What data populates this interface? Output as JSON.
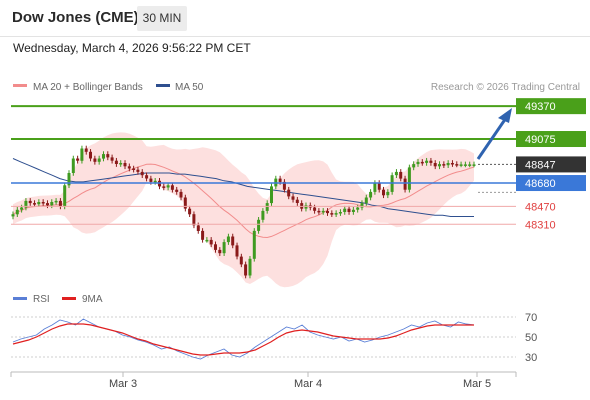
{
  "header": {
    "title": "Dow Jones (CME)",
    "timeframe": "30 MIN",
    "datetime": "Wednesday, March 4, 2026 9:56:22 PM CET"
  },
  "legend": {
    "ma20_label": "MA 20 + Bollinger Bands",
    "ma50_label": "MA 50",
    "ma20_color": "#f28c8c",
    "ma50_color": "#2e4f8f",
    "credit": "Research © 2026 Trading Central"
  },
  "rsi_legend": {
    "rsi_label": "RSI",
    "ma9_label": "9MA",
    "rsi_color": "#5a7fd6",
    "ma9_color": "#e02020"
  },
  "levels": [
    {
      "value": 49370,
      "label": "49370",
      "kind": "resistance",
      "color": "#4aa01a"
    },
    {
      "value": 49075,
      "label": "49075",
      "kind": "resistance",
      "color": "#4aa01a"
    },
    {
      "value": 48847,
      "label": "48847",
      "kind": "current",
      "color": "#333333"
    },
    {
      "value": 48680,
      "label": "48680",
      "kind": "pivot",
      "color": "#3a78d8"
    },
    {
      "value": 48470,
      "label": "48470",
      "kind": "support",
      "color": "#e04040"
    },
    {
      "value": 48310,
      "label": "48310",
      "kind": "support",
      "color": "#e04040"
    }
  ],
  "x_axis_labels": [
    "Mar 3",
    "Mar 4",
    "Mar 5"
  ],
  "rsi_axis_labels": [
    "70",
    "50",
    "30"
  ],
  "chart_data": [
    {
      "type": "candlestick",
      "title": "Dow Jones (CME)",
      "ylim": [
        47720,
        49470
      ],
      "bar_count": 108,
      "close_approx": [
        48400,
        48440,
        48460,
        48520,
        48500,
        48490,
        48510,
        48500,
        48480,
        48510,
        48520,
        48470,
        48660,
        48770,
        48900,
        48880,
        48990,
        48960,
        48900,
        48870,
        48900,
        48940,
        48910,
        48880,
        48850,
        48860,
        48830,
        48810,
        48800,
        48780,
        48750,
        48720,
        48690,
        48700,
        48650,
        48640,
        48660,
        48620,
        48600,
        48550,
        48450,
        48400,
        48300,
        48250,
        48170,
        48170,
        48130,
        48080,
        48050,
        48150,
        48200,
        48120,
        48020,
        47950,
        47850,
        48000,
        48250,
        48350,
        48430,
        48500,
        48650,
        48720,
        48690,
        48620,
        48560,
        48530,
        48500,
        48450,
        48480,
        48460,
        48430,
        48420,
        48430,
        48410,
        48400,
        48410,
        48420,
        48450,
        48420,
        48440,
        48460,
        48500,
        48550,
        48600,
        48680,
        48620,
        48570,
        48600,
        48750,
        48780,
        48720,
        48620,
        48820,
        48850,
        48870,
        48860,
        48880,
        48860,
        48830,
        48850,
        48840,
        48860,
        48850,
        48847,
        48847,
        48847,
        48847,
        48847
      ],
      "ma50_approx": [
        48900,
        48870,
        48840,
        48810,
        48780,
        48750,
        48720,
        48700,
        48690,
        48690,
        48700,
        48710,
        48720,
        48730,
        48740,
        48750,
        48760,
        48770,
        48770,
        48770,
        48770,
        48760,
        48760,
        48750,
        48740,
        48730,
        48720,
        48700,
        48690,
        48670,
        48650,
        48640,
        48630,
        48620,
        48610,
        48600,
        48590,
        48580,
        48570,
        48560,
        48550,
        48540,
        48530,
        48520,
        48510,
        48500,
        48480,
        48470,
        48450,
        48440,
        48430,
        48420,
        48410,
        48400,
        48390,
        48390,
        48380,
        48380,
        48380,
        48380
      ],
      "annotations": [
        "arrow up toward 49370"
      ]
    },
    {
      "type": "line",
      "title": "RSI",
      "ylim": [
        20,
        75
      ],
      "guides": [
        70,
        50,
        30
      ],
      "series": [
        {
          "name": "RSI",
          "values": [
            45,
            48,
            50,
            52,
            58,
            62,
            67,
            65,
            62,
            68,
            64,
            60,
            58,
            56,
            52,
            50,
            47,
            45,
            42,
            38,
            40,
            36,
            33,
            30,
            28,
            32,
            35,
            38,
            32,
            30,
            34,
            40,
            45,
            50,
            55,
            60,
            58,
            62,
            55,
            52,
            50,
            48,
            50,
            46,
            48,
            45,
            47,
            50,
            52,
            55,
            58,
            62,
            60,
            64,
            66,
            62,
            60,
            65,
            63,
            62
          ]
        },
        {
          "name": "9MA",
          "values": [
            43,
            45,
            47,
            50,
            54,
            58,
            61,
            63,
            63,
            63,
            62,
            60,
            58,
            56,
            54,
            51,
            48,
            46,
            43,
            41,
            39,
            37,
            35,
            33,
            32,
            32,
            33,
            34,
            34,
            34,
            35,
            37,
            41,
            45,
            50,
            54,
            56,
            57,
            56,
            55,
            53,
            51,
            50,
            49,
            48,
            48,
            48,
            48,
            49,
            51,
            54,
            57,
            59,
            61,
            62,
            62,
            62,
            62,
            62,
            62
          ]
        }
      ]
    }
  ]
}
